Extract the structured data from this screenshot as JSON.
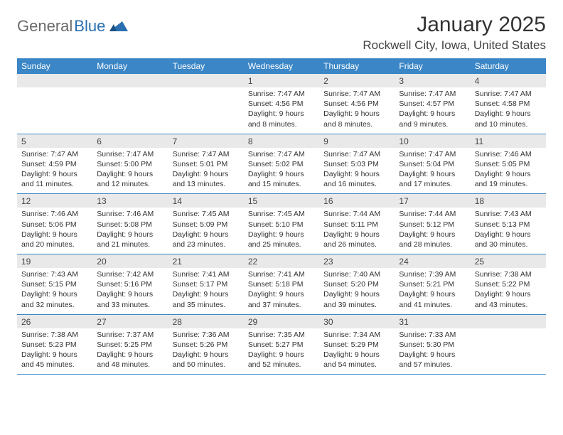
{
  "logo": {
    "text1": "General",
    "text2": "Blue",
    "color1": "#6a6a6a",
    "color2": "#2b6fb0"
  },
  "title": "January 2025",
  "location": "Rockwell City, Iowa, United States",
  "style": {
    "header_bg": "#3b86c6",
    "header_fg": "#ffffff",
    "daynum_bg": "#e9e9e9",
    "week_border": "#3b86c6",
    "page_bg": "#ffffff",
    "title_fontsize": 30,
    "location_fontsize": 17,
    "dow_fontsize": 12,
    "daynum_fontsize": 12,
    "detail_fontsize": 10.5
  },
  "days_of_week": [
    "Sunday",
    "Monday",
    "Tuesday",
    "Wednesday",
    "Thursday",
    "Friday",
    "Saturday"
  ],
  "weeks": [
    [
      null,
      null,
      null,
      {
        "n": "1",
        "sr": "Sunrise: 7:47 AM",
        "ss": "Sunset: 4:56 PM",
        "d1": "Daylight: 9 hours",
        "d2": "and 8 minutes."
      },
      {
        "n": "2",
        "sr": "Sunrise: 7:47 AM",
        "ss": "Sunset: 4:56 PM",
        "d1": "Daylight: 9 hours",
        "d2": "and 8 minutes."
      },
      {
        "n": "3",
        "sr": "Sunrise: 7:47 AM",
        "ss": "Sunset: 4:57 PM",
        "d1": "Daylight: 9 hours",
        "d2": "and 9 minutes."
      },
      {
        "n": "4",
        "sr": "Sunrise: 7:47 AM",
        "ss": "Sunset: 4:58 PM",
        "d1": "Daylight: 9 hours",
        "d2": "and 10 minutes."
      }
    ],
    [
      {
        "n": "5",
        "sr": "Sunrise: 7:47 AM",
        "ss": "Sunset: 4:59 PM",
        "d1": "Daylight: 9 hours",
        "d2": "and 11 minutes."
      },
      {
        "n": "6",
        "sr": "Sunrise: 7:47 AM",
        "ss": "Sunset: 5:00 PM",
        "d1": "Daylight: 9 hours",
        "d2": "and 12 minutes."
      },
      {
        "n": "7",
        "sr": "Sunrise: 7:47 AM",
        "ss": "Sunset: 5:01 PM",
        "d1": "Daylight: 9 hours",
        "d2": "and 13 minutes."
      },
      {
        "n": "8",
        "sr": "Sunrise: 7:47 AM",
        "ss": "Sunset: 5:02 PM",
        "d1": "Daylight: 9 hours",
        "d2": "and 15 minutes."
      },
      {
        "n": "9",
        "sr": "Sunrise: 7:47 AM",
        "ss": "Sunset: 5:03 PM",
        "d1": "Daylight: 9 hours",
        "d2": "and 16 minutes."
      },
      {
        "n": "10",
        "sr": "Sunrise: 7:47 AM",
        "ss": "Sunset: 5:04 PM",
        "d1": "Daylight: 9 hours",
        "d2": "and 17 minutes."
      },
      {
        "n": "11",
        "sr": "Sunrise: 7:46 AM",
        "ss": "Sunset: 5:05 PM",
        "d1": "Daylight: 9 hours",
        "d2": "and 19 minutes."
      }
    ],
    [
      {
        "n": "12",
        "sr": "Sunrise: 7:46 AM",
        "ss": "Sunset: 5:06 PM",
        "d1": "Daylight: 9 hours",
        "d2": "and 20 minutes."
      },
      {
        "n": "13",
        "sr": "Sunrise: 7:46 AM",
        "ss": "Sunset: 5:08 PM",
        "d1": "Daylight: 9 hours",
        "d2": "and 21 minutes."
      },
      {
        "n": "14",
        "sr": "Sunrise: 7:45 AM",
        "ss": "Sunset: 5:09 PM",
        "d1": "Daylight: 9 hours",
        "d2": "and 23 minutes."
      },
      {
        "n": "15",
        "sr": "Sunrise: 7:45 AM",
        "ss": "Sunset: 5:10 PM",
        "d1": "Daylight: 9 hours",
        "d2": "and 25 minutes."
      },
      {
        "n": "16",
        "sr": "Sunrise: 7:44 AM",
        "ss": "Sunset: 5:11 PM",
        "d1": "Daylight: 9 hours",
        "d2": "and 26 minutes."
      },
      {
        "n": "17",
        "sr": "Sunrise: 7:44 AM",
        "ss": "Sunset: 5:12 PM",
        "d1": "Daylight: 9 hours",
        "d2": "and 28 minutes."
      },
      {
        "n": "18",
        "sr": "Sunrise: 7:43 AM",
        "ss": "Sunset: 5:13 PM",
        "d1": "Daylight: 9 hours",
        "d2": "and 30 minutes."
      }
    ],
    [
      {
        "n": "19",
        "sr": "Sunrise: 7:43 AM",
        "ss": "Sunset: 5:15 PM",
        "d1": "Daylight: 9 hours",
        "d2": "and 32 minutes."
      },
      {
        "n": "20",
        "sr": "Sunrise: 7:42 AM",
        "ss": "Sunset: 5:16 PM",
        "d1": "Daylight: 9 hours",
        "d2": "and 33 minutes."
      },
      {
        "n": "21",
        "sr": "Sunrise: 7:41 AM",
        "ss": "Sunset: 5:17 PM",
        "d1": "Daylight: 9 hours",
        "d2": "and 35 minutes."
      },
      {
        "n": "22",
        "sr": "Sunrise: 7:41 AM",
        "ss": "Sunset: 5:18 PM",
        "d1": "Daylight: 9 hours",
        "d2": "and 37 minutes."
      },
      {
        "n": "23",
        "sr": "Sunrise: 7:40 AM",
        "ss": "Sunset: 5:20 PM",
        "d1": "Daylight: 9 hours",
        "d2": "and 39 minutes."
      },
      {
        "n": "24",
        "sr": "Sunrise: 7:39 AM",
        "ss": "Sunset: 5:21 PM",
        "d1": "Daylight: 9 hours",
        "d2": "and 41 minutes."
      },
      {
        "n": "25",
        "sr": "Sunrise: 7:38 AM",
        "ss": "Sunset: 5:22 PM",
        "d1": "Daylight: 9 hours",
        "d2": "and 43 minutes."
      }
    ],
    [
      {
        "n": "26",
        "sr": "Sunrise: 7:38 AM",
        "ss": "Sunset: 5:23 PM",
        "d1": "Daylight: 9 hours",
        "d2": "and 45 minutes."
      },
      {
        "n": "27",
        "sr": "Sunrise: 7:37 AM",
        "ss": "Sunset: 5:25 PM",
        "d1": "Daylight: 9 hours",
        "d2": "and 48 minutes."
      },
      {
        "n": "28",
        "sr": "Sunrise: 7:36 AM",
        "ss": "Sunset: 5:26 PM",
        "d1": "Daylight: 9 hours",
        "d2": "and 50 minutes."
      },
      {
        "n": "29",
        "sr": "Sunrise: 7:35 AM",
        "ss": "Sunset: 5:27 PM",
        "d1": "Daylight: 9 hours",
        "d2": "and 52 minutes."
      },
      {
        "n": "30",
        "sr": "Sunrise: 7:34 AM",
        "ss": "Sunset: 5:29 PM",
        "d1": "Daylight: 9 hours",
        "d2": "and 54 minutes."
      },
      {
        "n": "31",
        "sr": "Sunrise: 7:33 AM",
        "ss": "Sunset: 5:30 PM",
        "d1": "Daylight: 9 hours",
        "d2": "and 57 minutes."
      },
      null
    ]
  ]
}
